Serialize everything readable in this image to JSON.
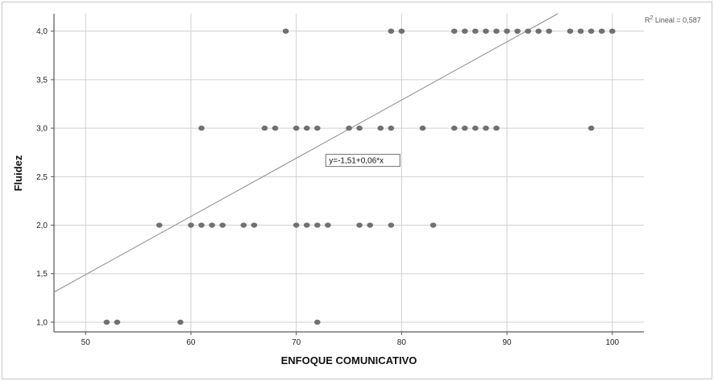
{
  "chart_data": {
    "type": "scatter",
    "xlabel": "ENFOQUE COMUNICATIVO",
    "ylabel": "Fluidez",
    "xlim": [
      47,
      103
    ],
    "ylim": [
      0.9,
      4.18
    ],
    "x_ticks": [
      50,
      60,
      70,
      80,
      90,
      100
    ],
    "y_ticks": [
      1.0,
      1.5,
      2.0,
      2.5,
      3.0,
      3.5,
      4.0
    ],
    "x_tick_labels": [
      "50",
      "60",
      "70",
      "80",
      "90",
      "100"
    ],
    "y_tick_labels": [
      "1,0",
      "1,5",
      "2,0",
      "2,5",
      "3,0",
      "3,5",
      "4,0"
    ],
    "grid": true,
    "point_color": "#707070",
    "points": [
      {
        "x": 52,
        "y": 1
      },
      {
        "x": 53,
        "y": 1
      },
      {
        "x": 59,
        "y": 1
      },
      {
        "x": 72,
        "y": 1
      },
      {
        "x": 57,
        "y": 2
      },
      {
        "x": 60,
        "y": 2
      },
      {
        "x": 61,
        "y": 2
      },
      {
        "x": 62,
        "y": 2
      },
      {
        "x": 63,
        "y": 2
      },
      {
        "x": 65,
        "y": 2
      },
      {
        "x": 66,
        "y": 2
      },
      {
        "x": 70,
        "y": 2
      },
      {
        "x": 71,
        "y": 2
      },
      {
        "x": 72,
        "y": 2
      },
      {
        "x": 73,
        "y": 2
      },
      {
        "x": 76,
        "y": 2
      },
      {
        "x": 77,
        "y": 2
      },
      {
        "x": 79,
        "y": 2
      },
      {
        "x": 83,
        "y": 2
      },
      {
        "x": 61,
        "y": 3
      },
      {
        "x": 67,
        "y": 3
      },
      {
        "x": 68,
        "y": 3
      },
      {
        "x": 70,
        "y": 3
      },
      {
        "x": 71,
        "y": 3
      },
      {
        "x": 72,
        "y": 3
      },
      {
        "x": 75,
        "y": 3
      },
      {
        "x": 76,
        "y": 3
      },
      {
        "x": 78,
        "y": 3
      },
      {
        "x": 79,
        "y": 3
      },
      {
        "x": 82,
        "y": 3
      },
      {
        "x": 85,
        "y": 3
      },
      {
        "x": 86,
        "y": 3
      },
      {
        "x": 87,
        "y": 3
      },
      {
        "x": 88,
        "y": 3
      },
      {
        "x": 89,
        "y": 3
      },
      {
        "x": 98,
        "y": 3
      },
      {
        "x": 69,
        "y": 4
      },
      {
        "x": 79,
        "y": 4
      },
      {
        "x": 80,
        "y": 4
      },
      {
        "x": 85,
        "y": 4
      },
      {
        "x": 86,
        "y": 4
      },
      {
        "x": 87,
        "y": 4
      },
      {
        "x": 88,
        "y": 4
      },
      {
        "x": 89,
        "y": 4
      },
      {
        "x": 90,
        "y": 4
      },
      {
        "x": 91,
        "y": 4
      },
      {
        "x": 92,
        "y": 4
      },
      {
        "x": 93,
        "y": 4
      },
      {
        "x": 94,
        "y": 4
      },
      {
        "x": 96,
        "y": 4
      },
      {
        "x": 97,
        "y": 4
      },
      {
        "x": 98,
        "y": 4
      },
      {
        "x": 99,
        "y": 4
      },
      {
        "x": 100,
        "y": 4
      }
    ],
    "fit_line": {
      "intercept": -1.51,
      "slope": 0.06,
      "equation_label": "y=-1,51+0,06*x",
      "equation_anchor": {
        "x": 72.8,
        "y": 2.73
      },
      "r2_label_prefix": "R",
      "r2_label_suffix": " Lineal = 0,587",
      "color": "#8c8c8c"
    }
  }
}
